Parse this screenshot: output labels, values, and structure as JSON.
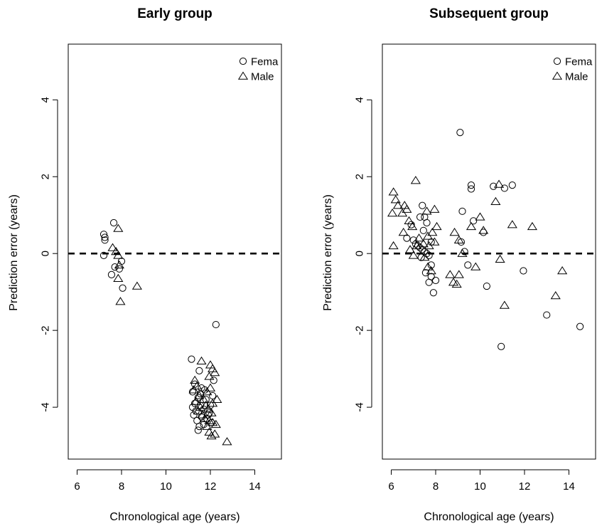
{
  "chart_data": [
    {
      "type": "scatter",
      "title": "Early group",
      "xlabel": "Chronological age (years)",
      "ylabel": "Prediction error (years)",
      "xlim": [
        5.6,
        15.2
      ],
      "ylim": [
        -5.35,
        5.45
      ],
      "xticks": [
        6,
        8,
        10,
        12,
        14
      ],
      "yticks": [
        -4,
        -2,
        0,
        2,
        4
      ],
      "reference_line": {
        "y": 0,
        "style": "dashed"
      },
      "legend": {
        "placement": "top-right",
        "clipped": true
      },
      "series": [
        {
          "name": "Fema",
          "marker": "circle",
          "points": [
            [
              7.2,
              0.5
            ],
            [
              7.25,
              0.42
            ],
            [
              7.25,
              0.35
            ],
            [
              7.2,
              -0.05
            ],
            [
              7.65,
              0.8
            ],
            [
              7.55,
              -0.55
            ],
            [
              7.7,
              -0.35
            ],
            [
              7.9,
              -0.4
            ],
            [
              8.0,
              -0.2
            ],
            [
              8.05,
              -0.9
            ],
            [
              12.25,
              -1.85
            ],
            [
              11.15,
              -2.75
            ],
            [
              11.5,
              -3.05
            ],
            [
              11.3,
              -3.4
            ],
            [
              11.6,
              -3.5
            ],
            [
              11.2,
              -3.6
            ],
            [
              11.45,
              -3.75
            ],
            [
              11.8,
              -3.8
            ],
            [
              11.3,
              -3.9
            ],
            [
              11.55,
              -3.95
            ],
            [
              11.2,
              -4.0
            ],
            [
              11.7,
              -4.05
            ],
            [
              11.35,
              -4.1
            ],
            [
              11.95,
              -4.15
            ],
            [
              11.25,
              -4.2
            ],
            [
              11.6,
              -4.25
            ],
            [
              11.85,
              -4.3
            ],
            [
              11.4,
              -4.35
            ],
            [
              12.05,
              -4.4
            ],
            [
              11.5,
              -4.5
            ],
            [
              11.7,
              -4.45
            ],
            [
              11.45,
              -4.6
            ],
            [
              11.9,
              -4.2
            ],
            [
              12.1,
              -3.7
            ],
            [
              11.75,
              -3.55
            ],
            [
              12.0,
              -3.95
            ],
            [
              11.55,
              -3.65
            ],
            [
              12.15,
              -3.3
            ]
          ]
        },
        {
          "name": "Male",
          "marker": "triangle",
          "points": [
            [
              7.85,
              0.65
            ],
            [
              7.6,
              0.15
            ],
            [
              7.75,
              0.05
            ],
            [
              7.85,
              -0.05
            ],
            [
              7.9,
              -0.3
            ],
            [
              7.85,
              -0.65
            ],
            [
              7.95,
              -1.25
            ],
            [
              8.7,
              -0.85
            ],
            [
              11.6,
              -2.8
            ],
            [
              12.0,
              -2.9
            ],
            [
              12.1,
              -3.0
            ],
            [
              12.2,
              -3.1
            ],
            [
              11.95,
              -3.2
            ],
            [
              11.4,
              -3.45
            ],
            [
              11.25,
              -3.55
            ],
            [
              11.85,
              -3.6
            ],
            [
              12.0,
              -3.5
            ],
            [
              11.5,
              -3.7
            ],
            [
              11.7,
              -3.8
            ],
            [
              11.35,
              -3.85
            ],
            [
              12.1,
              -3.9
            ],
            [
              11.8,
              -3.95
            ],
            [
              11.55,
              -4.0
            ],
            [
              11.9,
              -4.05
            ],
            [
              12.05,
              -4.15
            ],
            [
              11.65,
              -4.2
            ],
            [
              11.75,
              -4.3
            ],
            [
              11.95,
              -4.35
            ],
            [
              12.1,
              -4.4
            ],
            [
              11.85,
              -4.5
            ],
            [
              12.25,
              -4.45
            ],
            [
              11.95,
              -4.65
            ],
            [
              12.2,
              -4.7
            ],
            [
              12.05,
              -4.75
            ],
            [
              12.75,
              -4.9
            ],
            [
              11.3,
              -3.3
            ],
            [
              12.3,
              -3.8
            ],
            [
              11.45,
              -4.1
            ]
          ]
        }
      ]
    },
    {
      "type": "scatter",
      "title": "Subsequent group",
      "xlabel": "Chronological age (years)",
      "ylabel": "Prediction error (years)",
      "xlim": [
        5.6,
        15.2
      ],
      "ylim": [
        -5.35,
        5.45
      ],
      "xticks": [
        6,
        8,
        10,
        12,
        14
      ],
      "yticks": [
        -4,
        -2,
        0,
        2,
        4
      ],
      "reference_line": {
        "y": 0,
        "style": "dashed"
      },
      "legend": {
        "placement": "top-right",
        "clipped": true
      },
      "series": [
        {
          "name": "Fema",
          "marker": "circle",
          "points": [
            [
              9.1,
              3.15
            ],
            [
              9.6,
              1.78
            ],
            [
              9.6,
              1.68
            ],
            [
              10.6,
              1.75
            ],
            [
              11.1,
              1.7
            ],
            [
              11.45,
              1.78
            ],
            [
              7.4,
              1.25
            ],
            [
              7.5,
              0.95
            ],
            [
              7.3,
              0.95
            ],
            [
              7.6,
              0.8
            ],
            [
              6.9,
              0.75
            ],
            [
              6.7,
              0.4
            ],
            [
              7.0,
              0.35
            ],
            [
              7.1,
              0.25
            ],
            [
              7.2,
              0.2
            ],
            [
              7.3,
              0.15
            ],
            [
              7.4,
              0.1
            ],
            [
              7.5,
              0.05
            ],
            [
              7.6,
              0.0
            ],
            [
              7.7,
              -0.05
            ],
            [
              7.35,
              -0.1
            ],
            [
              7.8,
              -0.3
            ],
            [
              7.55,
              -0.5
            ],
            [
              7.8,
              -0.6
            ],
            [
              8.0,
              -0.7
            ],
            [
              7.7,
              -0.75
            ],
            [
              7.9,
              -1.02
            ],
            [
              9.2,
              1.1
            ],
            [
              9.7,
              0.85
            ],
            [
              10.15,
              0.55
            ],
            [
              9.15,
              0.3
            ],
            [
              9.3,
              0.05
            ],
            [
              9.45,
              -0.3
            ],
            [
              10.3,
              -0.85
            ],
            [
              11.95,
              -0.45
            ],
            [
              13.0,
              -1.6
            ],
            [
              14.5,
              -1.9
            ],
            [
              10.95,
              -2.42
            ],
            [
              7.8,
              0.3
            ],
            [
              7.45,
              0.6
            ]
          ]
        },
        {
          "name": "Male",
          "marker": "triangle",
          "points": [
            [
              6.1,
              1.6
            ],
            [
              6.2,
              1.4
            ],
            [
              6.3,
              1.25
            ],
            [
              6.6,
              1.25
            ],
            [
              6.5,
              1.05
            ],
            [
              6.05,
              1.05
            ],
            [
              6.7,
              1.15
            ],
            [
              7.1,
              1.9
            ],
            [
              6.8,
              0.85
            ],
            [
              6.95,
              0.7
            ],
            [
              6.55,
              0.55
            ],
            [
              6.1,
              0.2
            ],
            [
              6.85,
              0.1
            ],
            [
              7.0,
              -0.05
            ],
            [
              7.15,
              0.2
            ],
            [
              7.25,
              0.4
            ],
            [
              7.45,
              0.25
            ],
            [
              7.65,
              0.45
            ],
            [
              7.85,
              0.55
            ],
            [
              7.95,
              0.3
            ],
            [
              7.7,
              0.2
            ],
            [
              7.5,
              -0.1
            ],
            [
              7.6,
              1.1
            ],
            [
              7.95,
              1.15
            ],
            [
              8.05,
              0.7
            ],
            [
              7.65,
              -0.35
            ],
            [
              7.8,
              -0.45
            ],
            [
              8.65,
              -0.55
            ],
            [
              8.85,
              0.55
            ],
            [
              9.05,
              0.35
            ],
            [
              9.2,
              0.0
            ],
            [
              9.6,
              0.7
            ],
            [
              9.05,
              -0.55
            ],
            [
              9.8,
              -0.35
            ],
            [
              8.95,
              -0.8
            ],
            [
              10.0,
              0.95
            ],
            [
              10.15,
              0.6
            ],
            [
              10.7,
              1.35
            ],
            [
              10.85,
              1.8
            ],
            [
              10.9,
              -0.15
            ],
            [
              11.45,
              0.75
            ],
            [
              12.35,
              0.7
            ],
            [
              11.1,
              -1.35
            ],
            [
              13.4,
              -1.1
            ],
            [
              13.7,
              -0.45
            ],
            [
              8.8,
              -0.75
            ]
          ]
        }
      ]
    }
  ]
}
